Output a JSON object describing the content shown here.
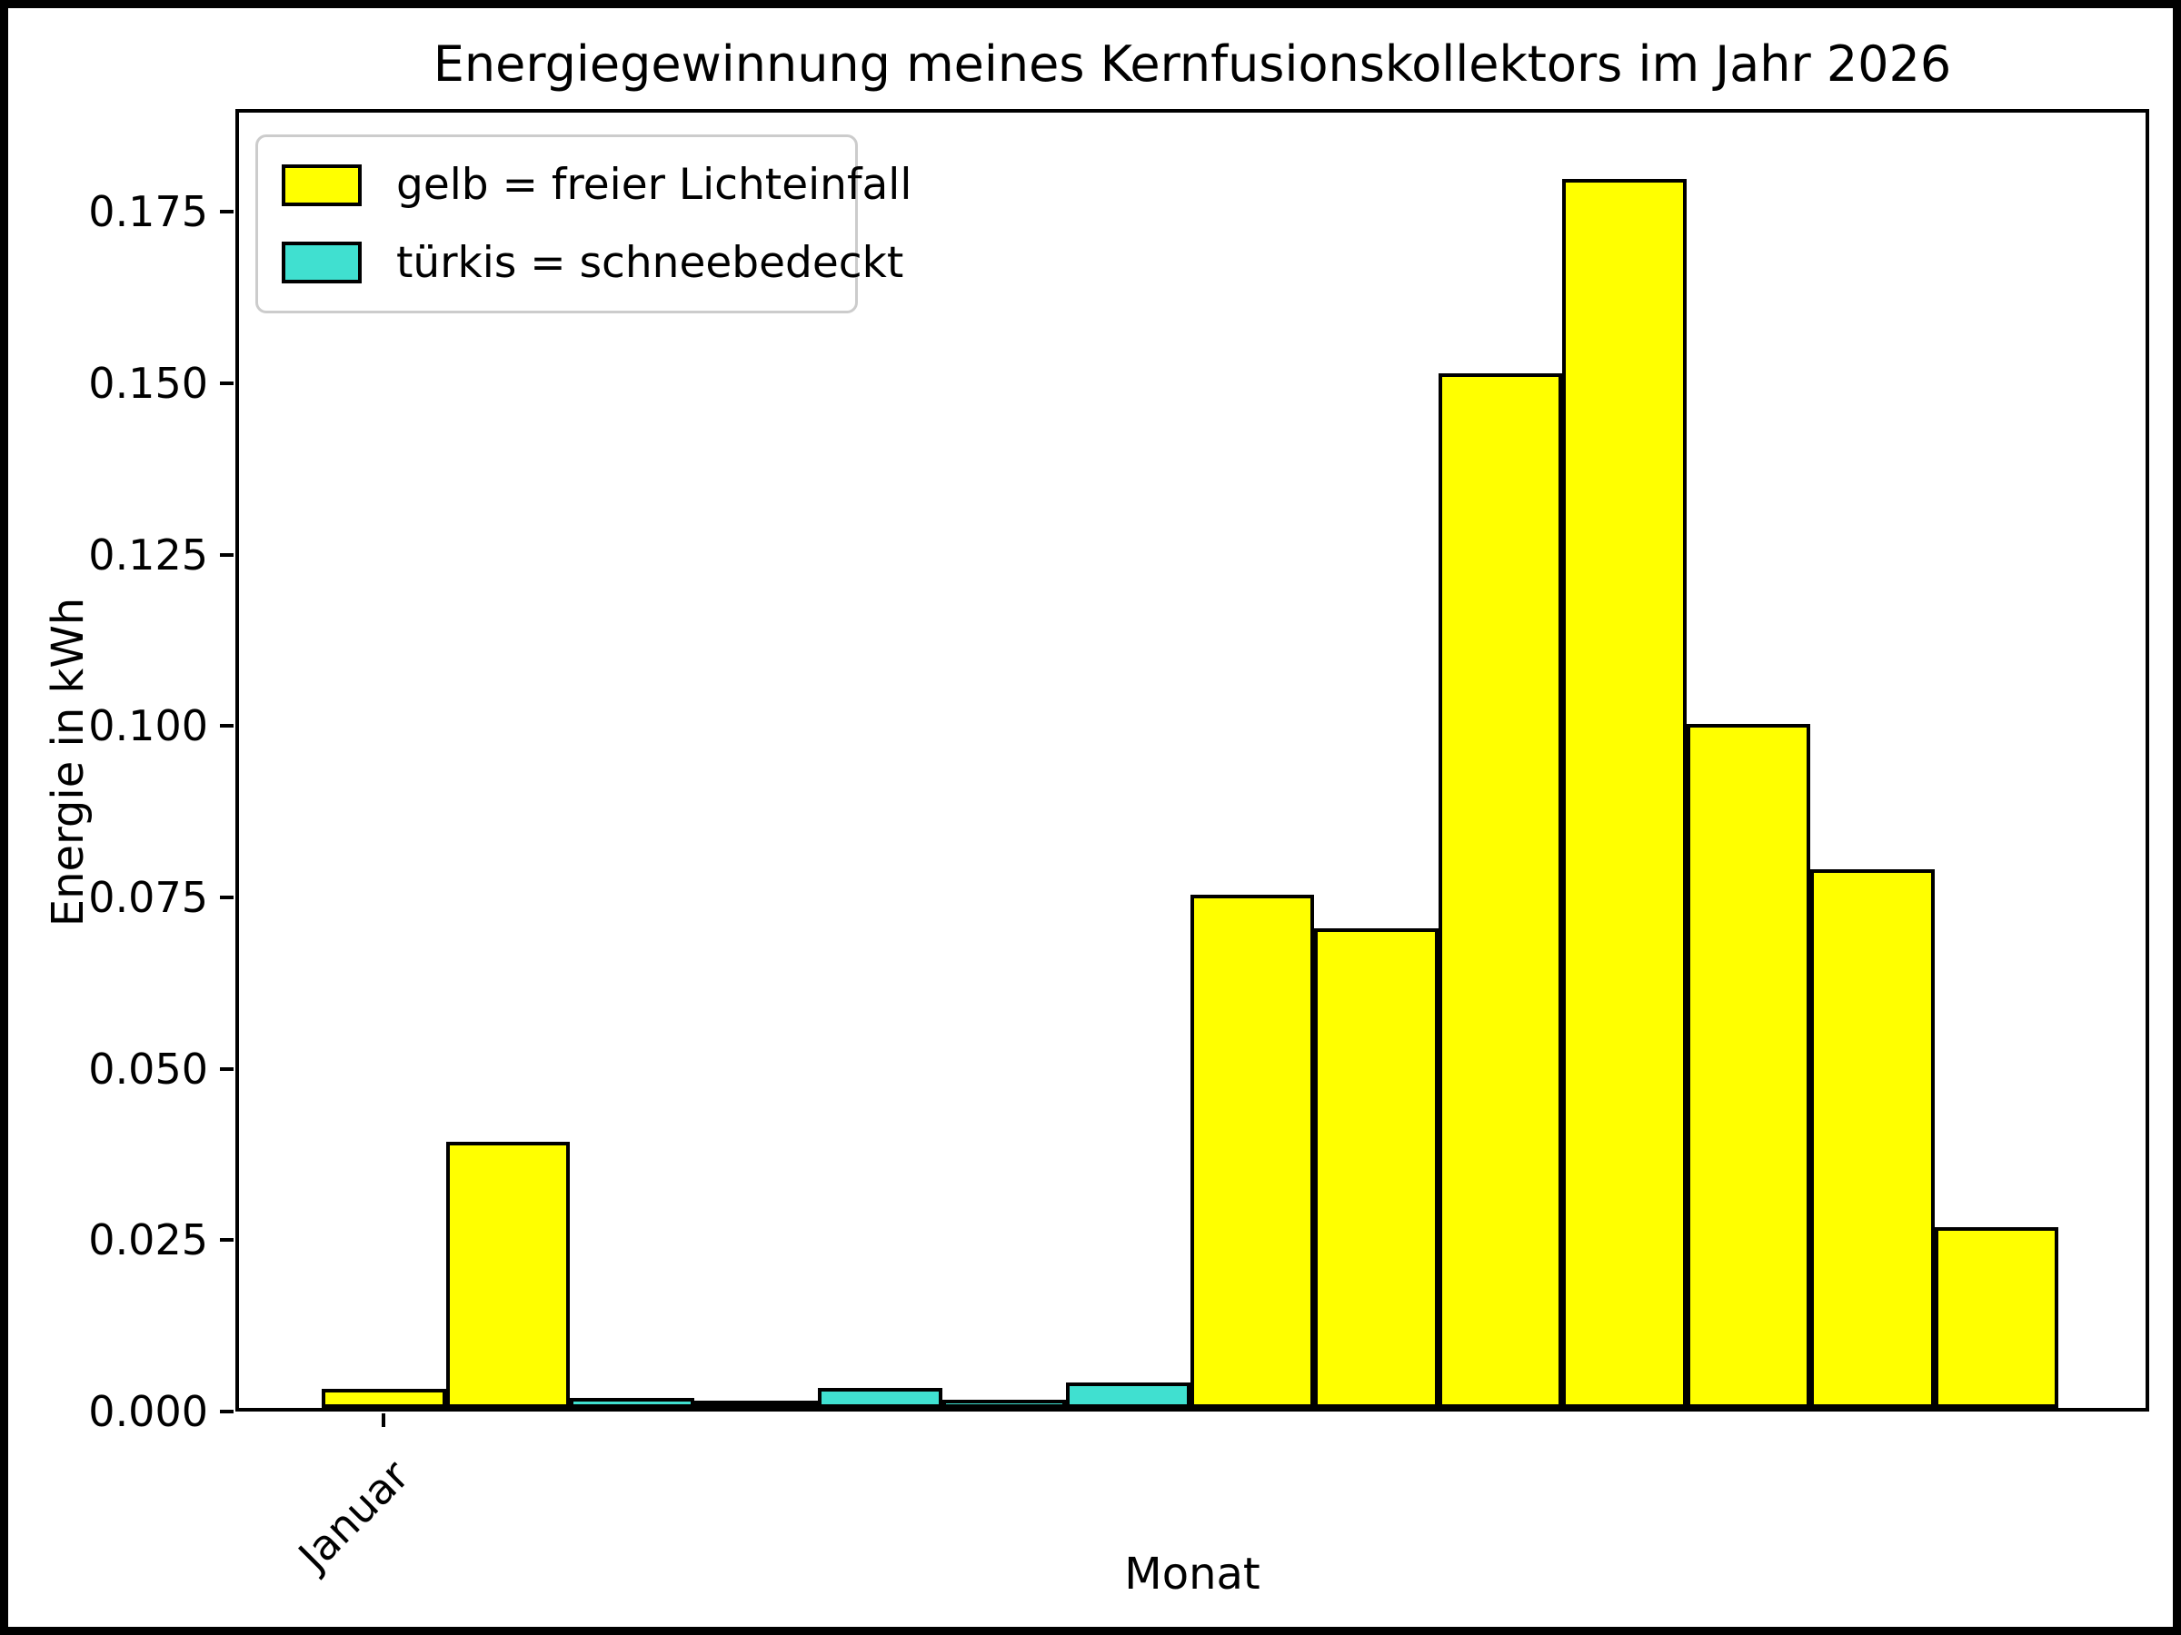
{
  "title": "Energiegewinnung meines Kernfusionskollektors im Jahr 2026",
  "axes": {
    "x_label": "Monat",
    "y_label": "Energie in kWh",
    "x_tick_label": "Januar",
    "y_tick_labels": [
      "0.000",
      "0.025",
      "0.050",
      "0.075",
      "0.100",
      "0.125",
      "0.150",
      "0.175"
    ]
  },
  "legend": {
    "items": [
      {
        "label": "gelb = freier Lichteinfall",
        "color_key": "gelb"
      },
      {
        "label": "türkis = schneebedeckt",
        "color_key": "tuerkis"
      }
    ]
  },
  "colors": {
    "gelb": "#ffff00",
    "tuerkis": "#40e0d0",
    "edge": "#000000",
    "legend_border": "#cccccc"
  },
  "chart_data": {
    "type": "bar",
    "title": "Energiegewinnung meines Kernfusionskollektors im Jahr 2026",
    "xlabel": "Monat",
    "ylabel": "Energie in kWh",
    "ylim": [
      0,
      0.19
    ],
    "yticks": [
      0,
      0.025,
      0.05,
      0.075,
      0.1,
      0.125,
      0.15,
      0.175
    ],
    "grid": false,
    "legend_position": "upper left",
    "x_tick_labels": [
      {
        "bin_index": 0,
        "label": "Januar",
        "rotation": 45
      }
    ],
    "series_legend": {
      "gelb": "freier Lichteinfall",
      "tuerkis": "schneebedeckt"
    },
    "bars": [
      {
        "bin": 1,
        "value": 0.0028,
        "series": "gelb"
      },
      {
        "bin": 2,
        "value": 0.039,
        "series": "gelb"
      },
      {
        "bin": 3,
        "value": 0.0015,
        "series": "tuerkis"
      },
      {
        "bin": 4,
        "value": 0.0008,
        "series": "tuerkis"
      },
      {
        "bin": 5,
        "value": 0.0029,
        "series": "tuerkis"
      },
      {
        "bin": 6,
        "value": 0.0012,
        "series": "tuerkis"
      },
      {
        "bin": 7,
        "value": 0.0037,
        "series": "tuerkis"
      },
      {
        "bin": 8,
        "value": 0.0753,
        "series": "gelb"
      },
      {
        "bin": 9,
        "value": 0.0703,
        "series": "gelb"
      },
      {
        "bin": 10,
        "value": 0.1517,
        "series": "gelb"
      },
      {
        "bin": 11,
        "value": 0.1803,
        "series": "gelb"
      },
      {
        "bin": 12,
        "value": 0.1003,
        "series": "gelb"
      },
      {
        "bin": 13,
        "value": 0.079,
        "series": "gelb"
      },
      {
        "bin": 14,
        "value": 0.0265,
        "series": "gelb"
      }
    ]
  }
}
